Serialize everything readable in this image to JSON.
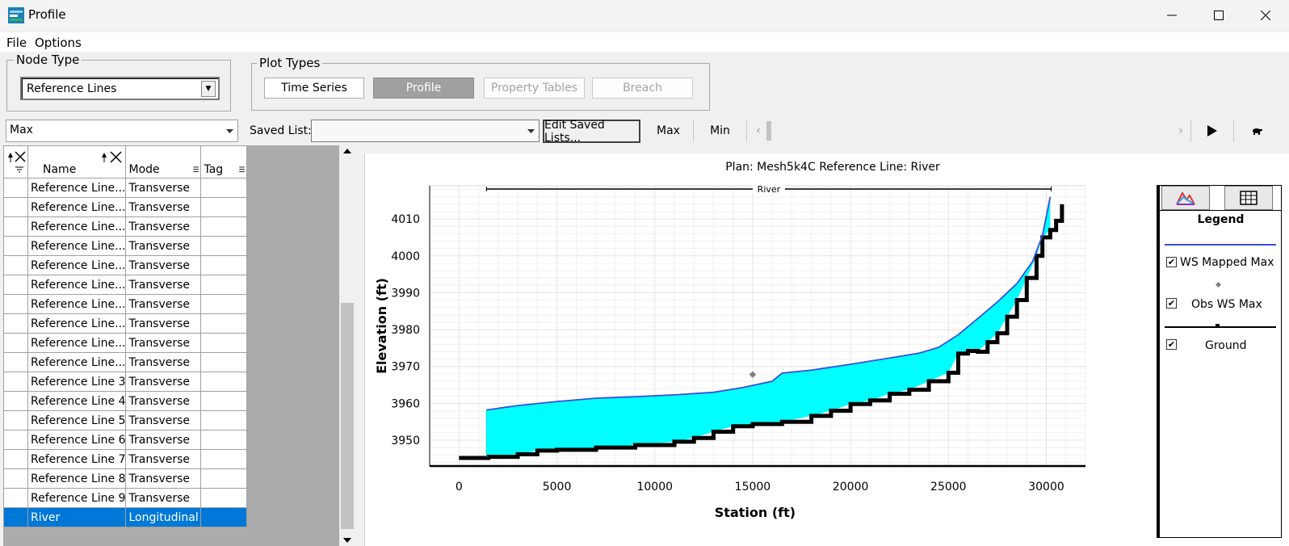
{
  "window": {
    "title": "Profile",
    "icon": "hec-ras-app-icon"
  },
  "menu": {
    "items": [
      "File",
      "Options"
    ]
  },
  "node_type": {
    "label": "Node Type",
    "selected": "Reference Lines"
  },
  "plot_types": {
    "label": "Plot Types",
    "buttons": [
      "Time Series",
      "Profile",
      "Property Tables",
      "Breach"
    ],
    "active": "Profile",
    "disabled": [
      "Property Tables",
      "Breach"
    ]
  },
  "toolbar": {
    "timestep_value": "Max",
    "saved_list_label": "Saved List:",
    "saved_list_value": "",
    "edit_saved_label": "Edit Saved Lists...",
    "max_label": "Max",
    "min_label": "Min"
  },
  "table": {
    "columns": [
      "Name",
      "Mode",
      "Tag"
    ],
    "rows": [
      {
        "name": "Reference Line...",
        "mode": "Transverse",
        "tag": ""
      },
      {
        "name": "Reference Line...",
        "mode": "Transverse",
        "tag": ""
      },
      {
        "name": "Reference Line...",
        "mode": "Transverse",
        "tag": ""
      },
      {
        "name": "Reference Line...",
        "mode": "Transverse",
        "tag": ""
      },
      {
        "name": "Reference Line...",
        "mode": "Transverse",
        "tag": ""
      },
      {
        "name": "Reference Line...",
        "mode": "Transverse",
        "tag": ""
      },
      {
        "name": "Reference Line...",
        "mode": "Transverse",
        "tag": ""
      },
      {
        "name": "Reference Line...",
        "mode": "Transverse",
        "tag": ""
      },
      {
        "name": "Reference Line...",
        "mode": "Transverse",
        "tag": ""
      },
      {
        "name": "Reference Line...",
        "mode": "Transverse",
        "tag": ""
      },
      {
        "name": "Reference Line 3",
        "mode": "Transverse",
        "tag": ""
      },
      {
        "name": "Reference Line 4",
        "mode": "Transverse",
        "tag": ""
      },
      {
        "name": "Reference Line 5",
        "mode": "Transverse",
        "tag": ""
      },
      {
        "name": "Reference Line 6",
        "mode": "Transverse",
        "tag": ""
      },
      {
        "name": "Reference Line 7",
        "mode": "Transverse",
        "tag": ""
      },
      {
        "name": "Reference Line 8",
        "mode": "Transverse",
        "tag": ""
      },
      {
        "name": "Reference Line 9",
        "mode": "Transverse",
        "tag": ""
      },
      {
        "name": "River",
        "mode": "Longitudinal",
        "tag": ""
      }
    ],
    "selected_row": "River"
  },
  "legend": {
    "title": "Legend",
    "items": [
      {
        "label": "WS Mapped Max",
        "checked": true,
        "color": "#3b4fd8"
      },
      {
        "label": "Obs WS Max",
        "checked": true,
        "color": "#7f7f7f"
      },
      {
        "label": "Ground",
        "checked": true,
        "color": "#000000"
      }
    ],
    "tabs": [
      "chart-icon",
      "table-icon"
    ]
  },
  "chart_data": {
    "type": "area",
    "title": "Plan: Mesh5k4C     Reference Line: River",
    "xlabel": "Station (ft)",
    "ylabel": "Elevation (ft)",
    "xlim": [
      -1500,
      32000
    ],
    "ylim": [
      3943,
      4019
    ],
    "xticks": [
      0,
      5000,
      10000,
      15000,
      20000,
      25000,
      30000
    ],
    "yticks": [
      3950,
      3960,
      3970,
      3980,
      3990,
      4000,
      4010
    ],
    "grid": true,
    "annotation": {
      "label": "River",
      "x_start": 1400,
      "x_end": 30250
    },
    "series": [
      {
        "name": "WS Mapped Max",
        "color": "#3b4fd8",
        "fill": "#00ffff",
        "x": [
          1400,
          3000,
          5000,
          7000,
          9000,
          11000,
          13000,
          14500,
          16000,
          16500,
          18000,
          20000,
          22000,
          23500,
          24500,
          25500,
          26500,
          27500,
          28500,
          29300,
          29800,
          30200
        ],
        "y": [
          3958.2,
          3959.4,
          3960.5,
          3961.4,
          3961.8,
          3962.3,
          3963.0,
          3964.3,
          3966.0,
          3968.2,
          3969.0,
          3970.6,
          3972.3,
          3973.6,
          3975.2,
          3978.6,
          3983.0,
          3987.5,
          3992.5,
          3998.5,
          4005.5,
          4016.0
        ]
      },
      {
        "name": "Ground",
        "color": "#000000",
        "x": [
          0,
          1500,
          3000,
          4000,
          5000,
          7000,
          9000,
          11000,
          12000,
          13000,
          14000,
          15000,
          16500,
          18000,
          19000,
          20000,
          21000,
          22000,
          23000,
          24000,
          25000,
          25500,
          26000,
          26500,
          27000,
          27500,
          28000,
          28500,
          29000,
          29500,
          29800,
          30200,
          30500,
          30800
        ],
        "y": [
          3945.2,
          3945.5,
          3946.2,
          3947.2,
          3947.4,
          3948.0,
          3948.7,
          3949.6,
          3950.6,
          3952.3,
          3953.8,
          3954.4,
          3955.0,
          3956.6,
          3958.0,
          3959.8,
          3960.8,
          3962.6,
          3963.7,
          3966.0,
          3968.3,
          3973.5,
          3974.2,
          3974.0,
          3976.6,
          3979.0,
          3983.5,
          3988.0,
          3994.0,
          4000.0,
          4005.0,
          4007.0,
          4009.5,
          4014.0
        ]
      },
      {
        "name": "Obs WS Max",
        "color": "#7f7f7f",
        "x": [
          15000
        ],
        "y": [
          3967.8
        ]
      }
    ]
  }
}
